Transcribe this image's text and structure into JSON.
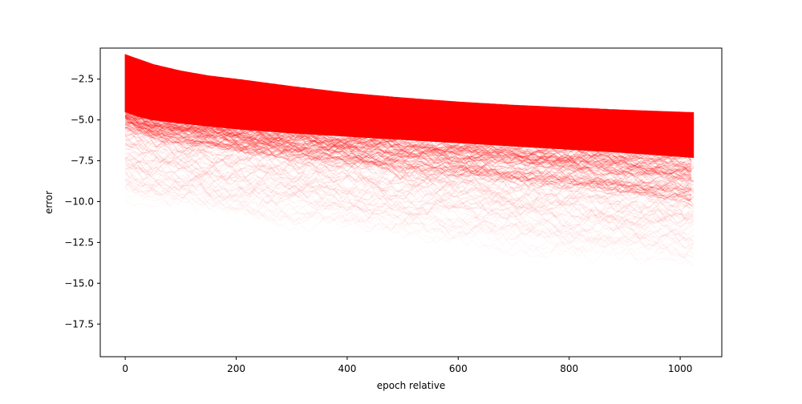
{
  "chart_data": {
    "type": "line",
    "title": "",
    "xlabel": "epoch relative",
    "ylabel": "error",
    "xlim": [
      -45,
      1075
    ],
    "ylim": [
      -19.5,
      -0.6
    ],
    "x_ticks": [
      0,
      200,
      400,
      600,
      800,
      1000
    ],
    "x_tick_labels": [
      "0",
      "200",
      "400",
      "600",
      "800",
      "1000"
    ],
    "y_ticks": [
      -2.5,
      -5.0,
      -7.5,
      -10.0,
      -12.5,
      -15.0,
      -17.5
    ],
    "y_tick_labels": [
      "−2.5",
      "−5.0",
      "−7.5",
      "−10.0",
      "−12.5",
      "−15.0",
      "−17.5"
    ],
    "grid": false,
    "legend": "none",
    "series_color": "#ff0000",
    "series_description": "many overlapping semi-transparent error curves over epochs 0 to 1024",
    "upper_envelope": {
      "x": [
        0,
        25,
        50,
        100,
        150,
        200,
        300,
        400,
        500,
        600,
        700,
        800,
        900,
        1024
      ],
      "y": [
        -1.0,
        -1.3,
        -1.6,
        -2.0,
        -2.3,
        -2.5,
        -2.95,
        -3.35,
        -3.65,
        -3.9,
        -4.1,
        -4.25,
        -4.4,
        -4.55
      ]
    },
    "dense_lower_bound": {
      "x": [
        0,
        25,
        50,
        100,
        200,
        300,
        400,
        500,
        600,
        700,
        800,
        900,
        1024
      ],
      "y": [
        -4.5,
        -4.8,
        -5.0,
        -5.2,
        -5.55,
        -5.8,
        -6.0,
        -6.2,
        -6.4,
        -6.6,
        -6.8,
        -7.0,
        -7.3
      ]
    },
    "faint_lower_bound": {
      "x": [
        0,
        100,
        200,
        300,
        400,
        500,
        600,
        700,
        800,
        900,
        1024
      ],
      "y": [
        -10.5,
        -11.0,
        -11.5,
        -12.0,
        -12.3,
        -12.8,
        -13.2,
        -13.6,
        -14.0,
        -14.3,
        -14.6
      ]
    }
  }
}
